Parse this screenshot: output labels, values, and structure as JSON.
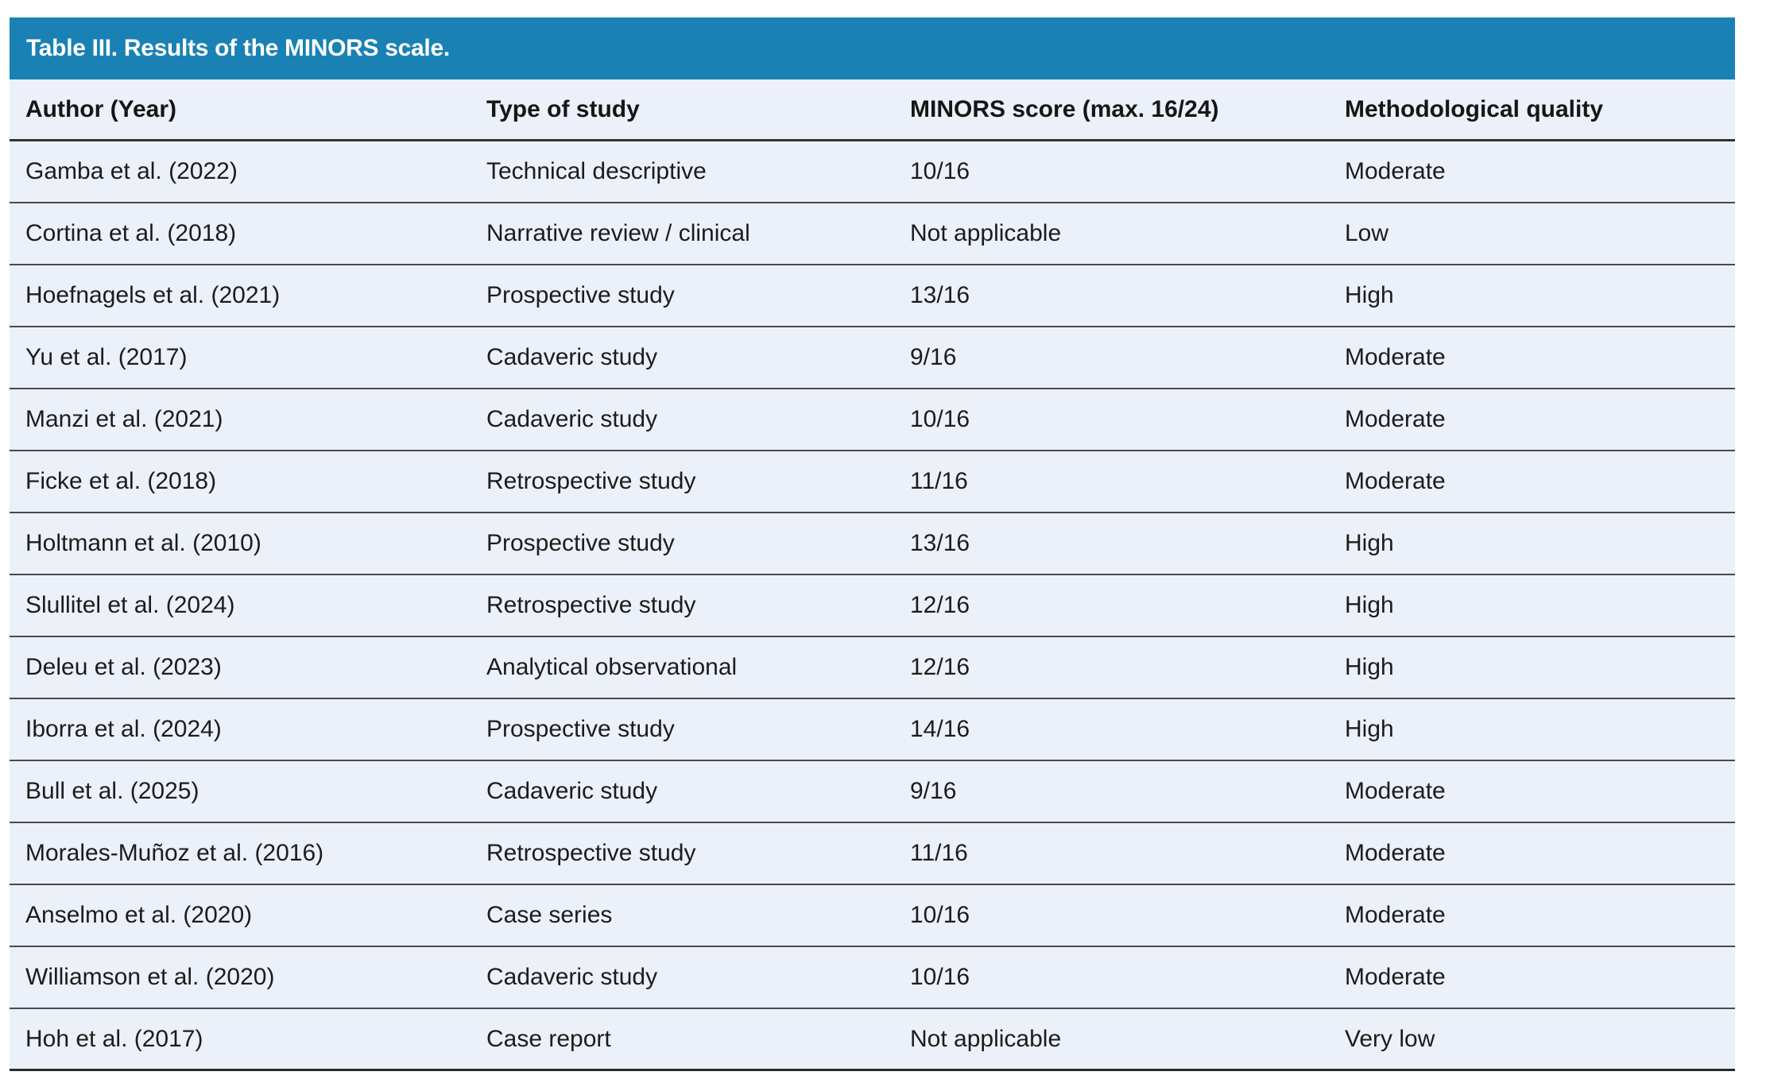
{
  "table": {
    "title": "Table III. Results of the MINORS scale.",
    "columns": {
      "author": "Author (Year)",
      "type": "Type of study",
      "score": "MINORS score (max. 16/24)",
      "quality": "Methodological quality"
    },
    "rows": [
      {
        "author": "Gamba et al. (2022)",
        "type": "Technical descriptive",
        "score": "10/16",
        "quality": "Moderate"
      },
      {
        "author": "Cortina et al. (2018)",
        "type": "Narrative review / clinical",
        "score": "Not applicable",
        "quality": "Low"
      },
      {
        "author": "Hoefnagels et al. (2021)",
        "type": "Prospective study",
        "score": "13/16",
        "quality": "High"
      },
      {
        "author": "Yu et al. (2017)",
        "type": "Cadaveric study",
        "score": "9/16",
        "quality": "Moderate"
      },
      {
        "author": "Manzi et al. (2021)",
        "type": "Cadaveric study",
        "score": "10/16",
        "quality": "Moderate"
      },
      {
        "author": "Ficke et al. (2018)",
        "type": "Retrospective study",
        "score": "11/16",
        "quality": "Moderate"
      },
      {
        "author": "Holtmann et al. (2010)",
        "type": "Prospective study",
        "score": "13/16",
        "quality": "High"
      },
      {
        "author": "Slullitel et al. (2024)",
        "type": "Retrospective study",
        "score": "12/16",
        "quality": "High"
      },
      {
        "author": "Deleu et al. (2023)",
        "type": "Analytical observational",
        "score": "12/16",
        "quality": "High"
      },
      {
        "author": "Iborra et al. (2024)",
        "type": "Prospective study",
        "score": "14/16",
        "quality": "High"
      },
      {
        "author": "Bull et al. (2025)",
        "type": "Cadaveric study",
        "score": "9/16",
        "quality": "Moderate"
      },
      {
        "author": "Morales-Muñoz et al. (2016)",
        "type": "Retrospective study",
        "score": "11/16",
        "quality": "Moderate"
      },
      {
        "author": "Anselmo et al. (2020)",
        "type": "Case series",
        "score": "10/16",
        "quality": "Moderate"
      },
      {
        "author": "Williamson et al. (2020)",
        "type": "Cadaveric study",
        "score": "10/16",
        "quality": "Moderate"
      },
      {
        "author": "Hoh et al. (2017)",
        "type": "Case report",
        "score": "Not applicable",
        "quality": "Very low"
      }
    ]
  },
  "colors": {
    "title_bar": "#1a81b4",
    "title_text": "#ffffff",
    "row_background": "#ecf0f8",
    "body_text": "#1c1c1c",
    "rule_line": "#4a4a4a"
  }
}
